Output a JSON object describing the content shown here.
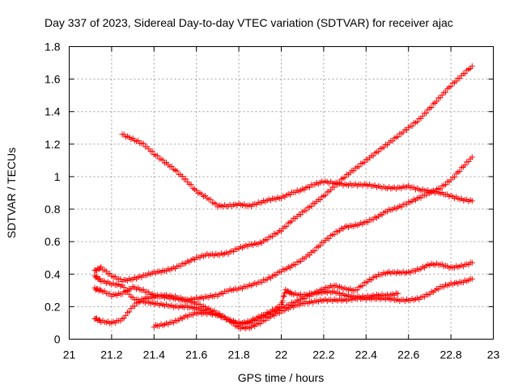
{
  "chart_data": {
    "type": "scatter",
    "title": "Day 337 of 2023, Sidereal Day-to-day VTEC variation (SDTVAR) for receiver ajac",
    "xlabel": "GPS time / hours",
    "ylabel": "SDTVAR / TECUs",
    "xlim": [
      21,
      23
    ],
    "ylim": [
      0,
      1.8
    ],
    "xticks": [
      21,
      21.2,
      21.4,
      21.6,
      21.8,
      22,
      22.2,
      22.4,
      22.6,
      22.8,
      23
    ],
    "xtick_labels": [
      "21",
      "21.2",
      "21.4",
      "21.6",
      "21.8",
      "22",
      "22.2",
      "22.4",
      "22.6",
      "22.8",
      "23"
    ],
    "yticks": [
      0,
      0.2,
      0.4,
      0.6,
      0.8,
      1,
      1.2,
      1.4,
      1.6,
      1.8
    ],
    "ytick_labels": [
      "0",
      "0.2",
      "0.4",
      "0.6",
      "0.8",
      "1",
      "1.2",
      "1.4",
      "1.6",
      "1.8"
    ],
    "grid": true,
    "marker": "+",
    "color": "#ff0000",
    "series": [
      {
        "x": [
          21.25,
          21.3,
          21.35,
          21.4,
          21.45,
          21.5,
          21.55,
          21.6,
          21.65,
          21.7,
          21.75,
          21.8,
          21.85,
          21.9,
          21.95,
          22.0,
          22.05,
          22.1,
          22.15,
          22.2,
          22.25,
          22.3,
          22.35,
          22.4,
          22.45,
          22.5,
          22.55,
          22.6,
          22.65,
          22.7,
          22.75,
          22.8,
          22.85,
          22.9
        ],
        "y": [
          1.26,
          1.23,
          1.2,
          1.14,
          1.09,
          1.04,
          0.98,
          0.91,
          0.87,
          0.82,
          0.82,
          0.83,
          0.82,
          0.84,
          0.86,
          0.87,
          0.9,
          0.92,
          0.95,
          0.97,
          0.96,
          0.95,
          0.95,
          0.95,
          0.94,
          0.93,
          0.93,
          0.94,
          0.92,
          0.91,
          0.9,
          0.88,
          0.86,
          0.85
        ]
      },
      {
        "x": [
          21.12,
          21.15,
          21.2,
          21.25,
          21.3,
          21.35,
          21.4,
          21.45,
          21.5,
          21.55,
          21.6,
          21.65,
          21.7,
          21.75,
          21.8,
          21.85,
          21.9,
          21.95,
          22.0,
          22.05,
          22.1,
          22.15,
          22.2,
          22.25,
          22.3,
          22.35,
          22.4,
          22.45,
          22.5,
          22.55,
          22.6,
          22.65,
          22.7,
          22.75,
          22.8,
          22.85,
          22.9
        ],
        "y": [
          0.42,
          0.44,
          0.39,
          0.36,
          0.37,
          0.39,
          0.41,
          0.42,
          0.44,
          0.47,
          0.5,
          0.52,
          0.52,
          0.53,
          0.56,
          0.58,
          0.59,
          0.63,
          0.67,
          0.73,
          0.78,
          0.83,
          0.88,
          0.94,
          1.0,
          1.05,
          1.1,
          1.15,
          1.2,
          1.25,
          1.3,
          1.35,
          1.42,
          1.49,
          1.56,
          1.62,
          1.68
        ]
      },
      {
        "x": [
          21.12,
          21.15,
          21.2,
          21.25,
          21.3,
          21.35,
          21.4,
          21.45,
          21.5,
          21.55,
          21.6,
          21.65,
          21.7,
          21.75,
          21.8,
          21.85,
          21.9,
          21.95,
          22.0,
          22.05,
          22.1,
          22.15,
          22.2,
          22.25,
          22.3,
          22.35,
          22.4,
          22.45,
          22.5,
          22.55,
          22.6,
          22.65,
          22.7,
          22.75,
          22.8,
          22.85,
          22.9
        ],
        "y": [
          0.31,
          0.3,
          0.27,
          0.28,
          0.32,
          0.3,
          0.27,
          0.26,
          0.25,
          0.24,
          0.25,
          0.26,
          0.27,
          0.3,
          0.31,
          0.33,
          0.35,
          0.38,
          0.42,
          0.45,
          0.49,
          0.54,
          0.6,
          0.65,
          0.69,
          0.7,
          0.72,
          0.75,
          0.79,
          0.81,
          0.84,
          0.87,
          0.9,
          0.93,
          0.98,
          1.05,
          1.12
        ]
      },
      {
        "x": [
          21.12,
          21.15,
          21.2,
          21.25,
          21.3,
          21.35,
          21.4,
          21.45,
          21.5,
          21.55,
          21.6,
          21.65,
          21.7,
          21.75,
          21.8,
          21.85,
          21.9,
          21.95,
          22.0,
          22.05,
          22.1,
          22.15,
          22.2,
          22.25,
          22.3,
          22.35,
          22.4,
          22.45,
          22.5,
          22.55,
          22.6,
          22.65,
          22.7,
          22.75,
          22.8,
          22.85,
          22.9
        ],
        "y": [
          0.39,
          0.36,
          0.34,
          0.33,
          0.25,
          0.23,
          0.22,
          0.21,
          0.2,
          0.2,
          0.19,
          0.17,
          0.15,
          0.12,
          0.1,
          0.1,
          0.13,
          0.16,
          0.19,
          0.22,
          0.25,
          0.28,
          0.31,
          0.33,
          0.31,
          0.3,
          0.35,
          0.39,
          0.41,
          0.41,
          0.41,
          0.43,
          0.46,
          0.46,
          0.44,
          0.45,
          0.47
        ]
      },
      {
        "x": [
          21.12,
          21.15,
          21.2,
          21.25,
          21.3,
          21.35,
          21.4,
          21.45,
          21.5,
          21.55,
          21.6,
          21.65,
          21.7,
          21.75,
          21.8,
          21.85,
          21.9,
          21.95,
          22.0,
          22.05,
          22.1,
          22.15,
          22.2,
          22.25,
          22.3,
          22.35,
          22.4,
          22.45,
          22.5,
          22.55,
          22.6,
          22.65,
          22.7,
          22.75,
          22.8,
          22.85,
          22.9
        ],
        "y": [
          0.13,
          0.11,
          0.1,
          0.12,
          0.2,
          0.25,
          0.26,
          0.27,
          0.26,
          0.24,
          0.22,
          0.19,
          0.16,
          0.12,
          0.07,
          0.07,
          0.1,
          0.14,
          0.17,
          0.2,
          0.22,
          0.23,
          0.24,
          0.24,
          0.24,
          0.25,
          0.25,
          0.25,
          0.25,
          0.24,
          0.24,
          0.25,
          0.28,
          0.32,
          0.34,
          0.35,
          0.37
        ]
      },
      {
        "x": [
          21.4,
          21.45,
          21.5,
          21.55,
          21.6,
          21.65,
          21.7,
          21.75,
          21.8,
          21.85,
          21.9,
          21.95,
          22.0,
          22.02,
          22.05,
          22.1,
          22.15,
          22.2,
          22.25,
          22.3,
          22.35,
          22.4,
          22.45,
          22.5,
          22.55
        ],
        "y": [
          0.08,
          0.09,
          0.11,
          0.14,
          0.16,
          0.16,
          0.15,
          0.12,
          0.09,
          0.11,
          0.14,
          0.17,
          0.21,
          0.3,
          0.28,
          0.27,
          0.28,
          0.29,
          0.29,
          0.27,
          0.26,
          0.26,
          0.27,
          0.27,
          0.28
        ]
      }
    ]
  }
}
